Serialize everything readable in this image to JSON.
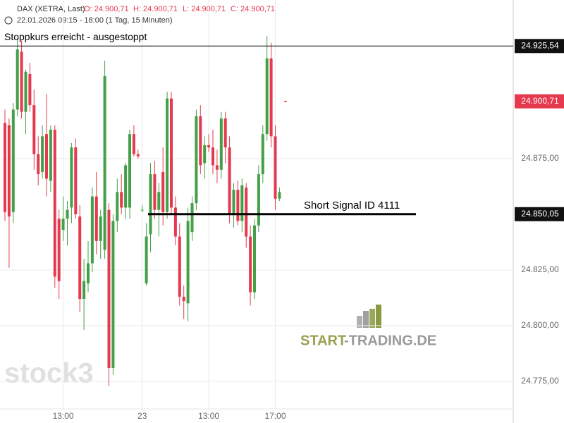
{
  "chart_data": {
    "type": "candlestick",
    "title": "DAX (XETRA, Last)",
    "ohlc_header": [
      "O: 24.900,71",
      "H: 24.900,71",
      "L: 24.900,71",
      "C: 24.900,71"
    ],
    "subtitle": "22.01.2026 09:15 - 18:00  (1 Tag, 15 Minuten)",
    "open": [
      24891,
      24890,
      24851,
      24897,
      24923,
      24896,
      24913,
      24899,
      24877,
      24869,
      24886,
      24865,
      24888,
      24848,
      24843,
      24848,
      24853,
      24880,
      24849,
      24812,
      24819,
      24828,
      24858,
      24838,
      24834,
      24852,
      24781,
      24847,
      24860,
      24853,
      24853,
      24886,
      24877,
      24852,
      24819,
      24841,
      24868,
      24852,
      24869,
      24851,
      24902,
      24853,
      24840,
      24813,
      24810,
      24842,
      24855,
      24894,
      24873,
      24881,
      24880,
      24872,
      24870,
      24893,
      24880,
      24850,
      24861,
      24847,
      24862,
      24840,
      24815,
      24845,
      24868,
      24886,
      24920,
      24885,
      24857
    ],
    "high": [
      24897,
      24893,
      24900,
      24929,
      24928,
      24915,
      24918,
      24906,
      24885,
      24890,
      24904,
      24890,
      24890,
      24852,
      24858,
      24856,
      24882,
      24884,
      24854,
      24830,
      24838,
      24862,
      24869,
      24852,
      24919,
      24855,
      24850,
      24866,
      24868,
      24873,
      24888,
      24890,
      24879,
      24854,
      24846,
      24873,
      24874,
      24864,
      24880,
      24905,
      24905,
      24858,
      24846,
      24818,
      24853,
      24858,
      24897,
      24899,
      24885,
      24886,
      24888,
      24879,
      24896,
      24896,
      24885,
      24864,
      24865,
      24866,
      24864,
      24845,
      24848,
      24872,
      24890,
      24930,
      24927,
      24890,
      24862
    ],
    "low": [
      24847,
      24826,
      24846,
      24894,
      24893,
      24886,
      24896,
      24870,
      24863,
      24866,
      24858,
      24860,
      24817,
      24812,
      24838,
      24836,
      24846,
      24848,
      24806,
      24798,
      24815,
      24824,
      24832,
      24830,
      24830,
      24773,
      24778,
      24842,
      24850,
      24848,
      24848,
      24876,
      24875,
      24851,
      24818,
      24833,
      24848,
      24840,
      24845,
      24848,
      24850,
      24836,
      24809,
      24803,
      24802,
      24838,
      24852,
      24868,
      24866,
      24878,
      24868,
      24864,
      24866,
      24873,
      24846,
      24844,
      24845,
      24842,
      24835,
      24809,
      24812,
      24842,
      24864,
      24883,
      24880,
      24852,
      24856
    ],
    "close": [
      24851,
      24849,
      24897,
      24924,
      24896,
      24914,
      24899,
      24877,
      24868,
      24885,
      24866,
      24888,
      24822,
      24820,
      24848,
      24852,
      24880,
      24850,
      24812,
      24820,
      24828,
      24858,
      24838,
      24849,
      24912,
      24781,
      24847,
      24860,
      24853,
      24872,
      24886,
      24877,
      24876,
      24852,
      24840,
      24868,
      24852,
      24860,
      24851,
      24902,
      24853,
      24840,
      24813,
      24811,
      24847,
      24855,
      24894,
      24872,
      24881,
      24880,
      24872,
      24870,
      24893,
      24880,
      24850,
      24861,
      24847,
      24863,
      24840,
      24815,
      24845,
      24868,
      24886,
      24920,
      24885,
      24857,
      24860
    ],
    "up_color": "#43a047",
    "down_color": "#e53950",
    "xticks": [
      {
        "value": 14,
        "label": "13:00"
      },
      {
        "value": 33,
        "label": "23"
      },
      {
        "value": 49,
        "label": "13:00"
      },
      {
        "value": 65,
        "label": "17:00"
      }
    ],
    "ylim": [
      24756.3,
      24946.2
    ],
    "yticks": [
      {
        "value": 24775,
        "label": "24.775,00"
      },
      {
        "value": 24800,
        "label": "24.800,00"
      },
      {
        "value": 24825,
        "label": "24.825,00"
      },
      {
        "value": 24875,
        "label": "24.875,00"
      }
    ],
    "grid": true,
    "stop_level": {
      "value": 24925.54,
      "label": "24.925,54",
      "text": "Stoppkurs erreicht - ausgestoppt"
    },
    "current_price": {
      "value": 24900.71,
      "label": "24.900,71"
    },
    "signal_level": {
      "value": 24850.05,
      "label": "24.850,05",
      "text": "Short Signal  ID 4111"
    },
    "watermark": "stock3",
    "logo": [
      "START",
      "-TRADING.DE"
    ]
  }
}
